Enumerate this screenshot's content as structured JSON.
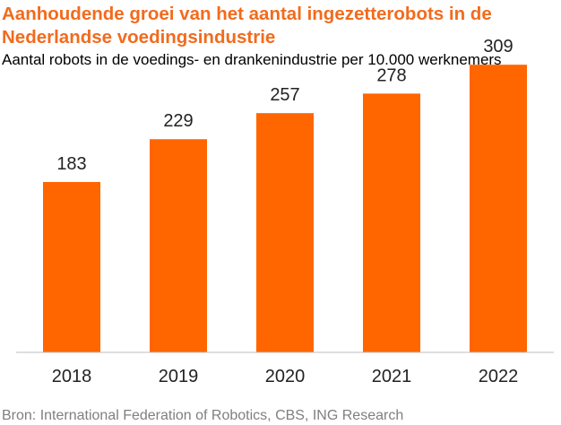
{
  "title": "Aanhoudende groei van het aantal ingezetterobots in de Nederlandse voedingsindustrie",
  "subtitle": "Aantal robots in de voedings- en drankenindustrie per  10.000 werknemers",
  "source": "Bron: International Federation  of Robotics, CBS, ING Research",
  "colors": {
    "bar": "#ff6600",
    "title": "#f26b1d",
    "axis": "#bfbfbf",
    "source": "#7f7f7f"
  },
  "chart_data": {
    "type": "bar",
    "title": "Aanhoudende groei van het aantal ingezetterobots in de Nederlandse voedingsindustrie",
    "subtitle": "Aantal robots in de voedings- en drankenindustrie per  10.000 werknemers",
    "categories": [
      "2018",
      "2019",
      "2020",
      "2021",
      "2022"
    ],
    "values": [
      183,
      229,
      257,
      278,
      309
    ],
    "data_labels": [
      "183",
      "229",
      "257",
      "278",
      "309"
    ],
    "xlabel": "",
    "ylabel": "",
    "ylim": [
      0,
      340
    ],
    "grid": false,
    "legend": "none"
  }
}
